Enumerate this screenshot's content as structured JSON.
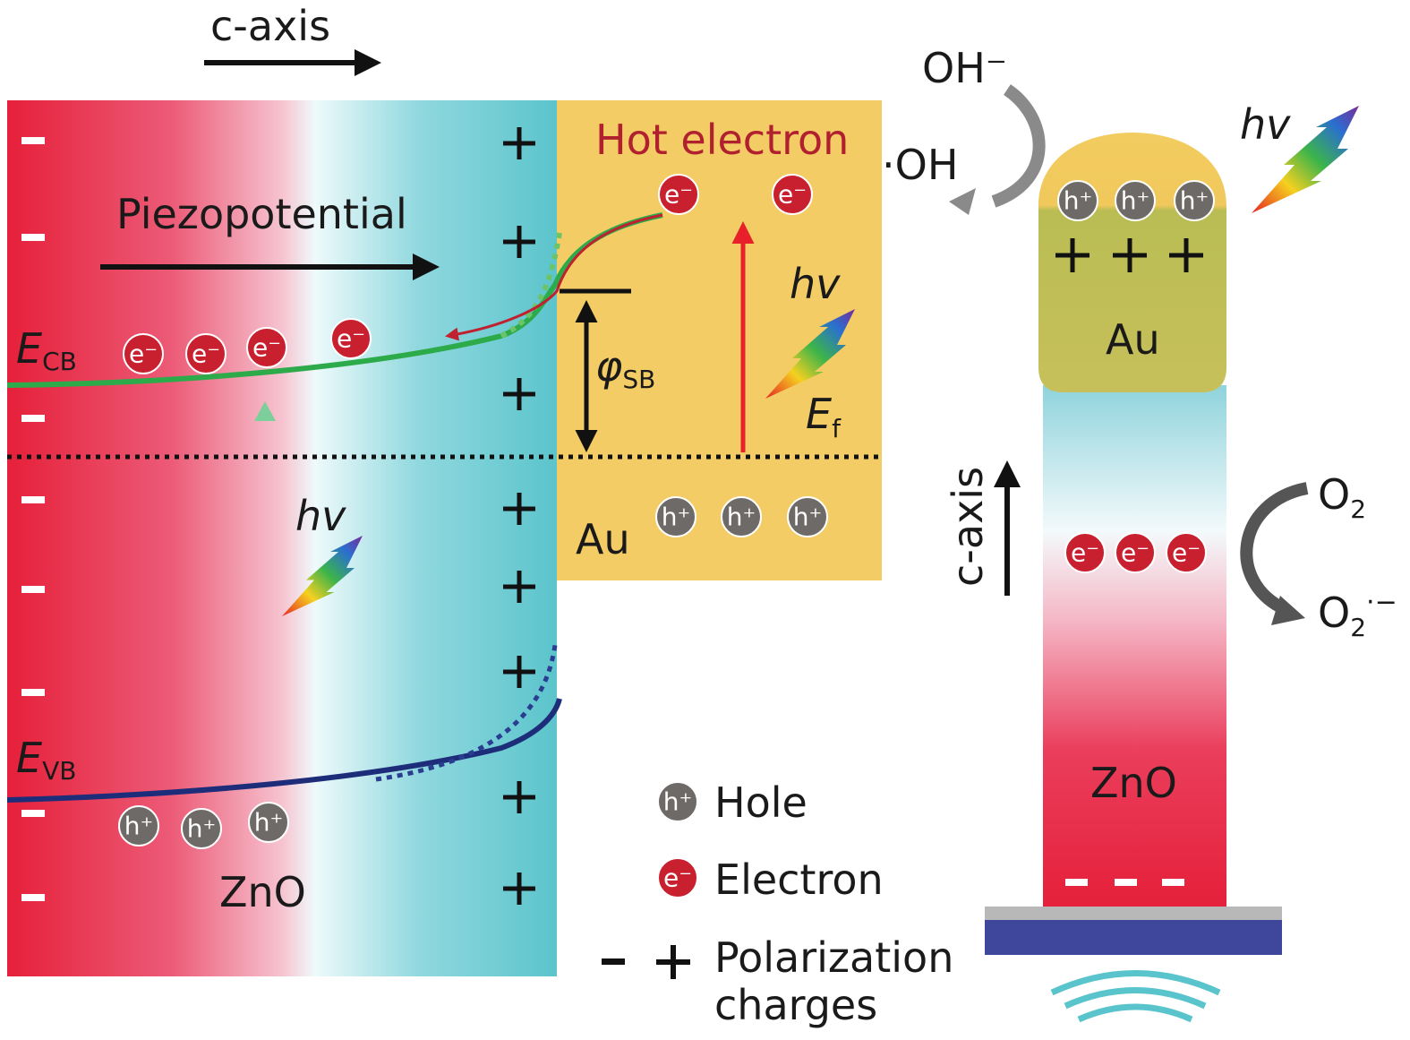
{
  "left_panel": {
    "top_axis_label": "c-axis",
    "piezo_label": "Piezopotential",
    "hot_electron_label": "Hot electron",
    "ecb": {
      "main": "E",
      "sub": "CB"
    },
    "evb": {
      "main": "E",
      "sub": "VB"
    },
    "barrier": {
      "main": "φ",
      "sub": "SB"
    },
    "fermi": {
      "main": "E",
      "sub": "f"
    },
    "photon_label": "hv",
    "metal_label": "Au",
    "semiconductor_label": "ZnO"
  },
  "particles": {
    "electron": "e⁻",
    "hole": "h⁺"
  },
  "legend": {
    "hole": "Hole",
    "electron": "Electron",
    "polarization": [
      "Polarization",
      "charges"
    ]
  },
  "right_panel": {
    "oh_ion": "OH⁻",
    "oh_radical": "·OH",
    "photon_label": "hv",
    "metal_label": "Au",
    "semiconductor_label": "ZnO",
    "axis_label": "c-axis",
    "o2": {
      "main": "O",
      "sub": "2"
    },
    "superoxide": {
      "main": "O",
      "sub": "2",
      "sup": "·−"
    }
  }
}
